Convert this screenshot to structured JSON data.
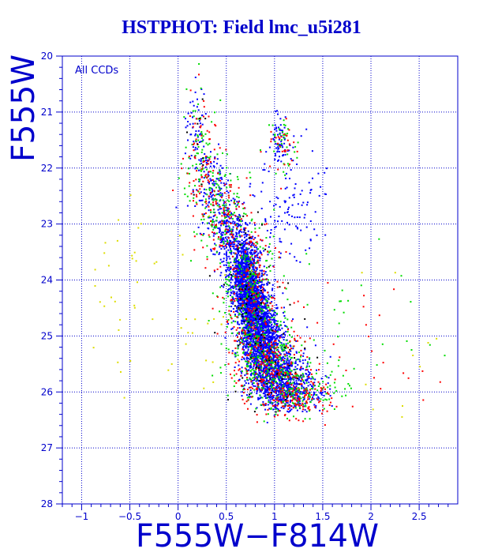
{
  "chart_data": {
    "type": "scatter",
    "title": "HSTPHOT: Field lmc_u5i281",
    "xlabel": "F555W−F814W",
    "ylabel": "F555W",
    "panel_label": "All CCDs",
    "xlim": [
      -1.2,
      2.9
    ],
    "ylim": [
      28,
      20
    ],
    "y_inverted": true,
    "grid": true,
    "grid_style": "dotted",
    "grid_color": "#0000cc",
    "x_ticks": [
      -1,
      -0.5,
      0,
      0.5,
      1,
      1.5,
      2,
      2.5
    ],
    "x_tick_labels": [
      "−1",
      "−0.5",
      "0",
      "0.5",
      "1",
      "1.5",
      "2",
      "2.5"
    ],
    "y_ticks": [
      20,
      21,
      22,
      23,
      24,
      25,
      26,
      27,
      28
    ],
    "y_tick_labels": [
      "20",
      "21",
      "22",
      "23",
      "24",
      "25",
      "26",
      "27",
      "28"
    ],
    "colors": {
      "axis": "#0000cc",
      "point_blue": "#0000ff",
      "point_green": "#00dd00",
      "point_red": "#ff0000",
      "point_yellow": "#dddd00",
      "point_black": "#000000"
    },
    "series": [
      {
        "color": "#0000ff",
        "clusters": [
          {
            "cx": 0.2,
            "cy": 21.3,
            "sx": 0.06,
            "sy": 0.35,
            "n": 60
          },
          {
            "cx": 0.33,
            "cy": 22.3,
            "sx": 0.1,
            "sy": 0.35,
            "n": 120
          },
          {
            "cx": 0.52,
            "cy": 23.1,
            "sx": 0.1,
            "sy": 0.3,
            "n": 240
          },
          {
            "cx": 0.68,
            "cy": 23.8,
            "sx": 0.08,
            "sy": 0.3,
            "n": 700
          },
          {
            "cx": 0.76,
            "cy": 24.4,
            "sx": 0.08,
            "sy": 0.3,
            "n": 900
          },
          {
            "cx": 0.86,
            "cy": 25.0,
            "sx": 0.1,
            "sy": 0.3,
            "n": 900
          },
          {
            "cx": 0.98,
            "cy": 25.6,
            "sx": 0.14,
            "sy": 0.25,
            "n": 700
          },
          {
            "cx": 1.15,
            "cy": 26.0,
            "sx": 0.18,
            "sy": 0.18,
            "n": 400
          },
          {
            "cx": 1.05,
            "cy": 21.5,
            "sx": 0.05,
            "sy": 0.25,
            "n": 60
          },
          {
            "cx": 1.12,
            "cy": 22.6,
            "sx": 0.2,
            "sy": 0.5,
            "n": 120
          }
        ]
      },
      {
        "color": "#00dd00",
        "clusters": [
          {
            "cx": 0.25,
            "cy": 21.8,
            "sx": 0.1,
            "sy": 0.5,
            "n": 80
          },
          {
            "cx": 0.45,
            "cy": 22.8,
            "sx": 0.15,
            "sy": 0.4,
            "n": 120
          },
          {
            "cx": 0.74,
            "cy": 24.2,
            "sx": 0.14,
            "sy": 0.6,
            "n": 260
          },
          {
            "cx": 0.95,
            "cy": 25.4,
            "sx": 0.2,
            "sy": 0.4,
            "n": 260
          },
          {
            "cx": 1.3,
            "cy": 26.0,
            "sx": 0.22,
            "sy": 0.2,
            "n": 130
          },
          {
            "cx": 1.1,
            "cy": 21.6,
            "sx": 0.08,
            "sy": 0.3,
            "n": 35
          },
          {
            "cx": 1.8,
            "cy": 24.8,
            "sx": 0.5,
            "sy": 0.8,
            "n": 35
          }
        ]
      },
      {
        "color": "#ff0000",
        "clusters": [
          {
            "cx": 0.25,
            "cy": 21.8,
            "sx": 0.1,
            "sy": 0.5,
            "n": 70
          },
          {
            "cx": 0.45,
            "cy": 22.8,
            "sx": 0.15,
            "sy": 0.4,
            "n": 100
          },
          {
            "cx": 0.74,
            "cy": 24.2,
            "sx": 0.14,
            "sy": 0.6,
            "n": 200
          },
          {
            "cx": 0.95,
            "cy": 25.5,
            "sx": 0.2,
            "sy": 0.4,
            "n": 220
          },
          {
            "cx": 1.2,
            "cy": 26.1,
            "sx": 0.22,
            "sy": 0.18,
            "n": 130
          },
          {
            "cx": 1.1,
            "cy": 21.6,
            "sx": 0.08,
            "sy": 0.3,
            "n": 30
          },
          {
            "cx": 1.8,
            "cy": 24.8,
            "sx": 0.5,
            "sy": 0.8,
            "n": 25
          }
        ]
      },
      {
        "color": "#dddd00",
        "clusters": [
          {
            "cx": -0.4,
            "cy": 24.5,
            "sx": 0.4,
            "sy": 0.9,
            "n": 45
          },
          {
            "cx": 0.3,
            "cy": 25.2,
            "sx": 0.2,
            "sy": 0.6,
            "n": 15
          },
          {
            "cx": 2.3,
            "cy": 25.8,
            "sx": 0.3,
            "sy": 0.7,
            "n": 10
          }
        ]
      },
      {
        "color": "#000000",
        "clusters": [
          {
            "cx": 0.75,
            "cy": 24.2,
            "sx": 0.15,
            "sy": 0.7,
            "n": 70
          },
          {
            "cx": 1.0,
            "cy": 25.6,
            "sx": 0.2,
            "sy": 0.4,
            "n": 40
          },
          {
            "cx": 0.2,
            "cy": 21.5,
            "sx": 0.1,
            "sy": 0.6,
            "n": 10
          }
        ]
      }
    ]
  }
}
